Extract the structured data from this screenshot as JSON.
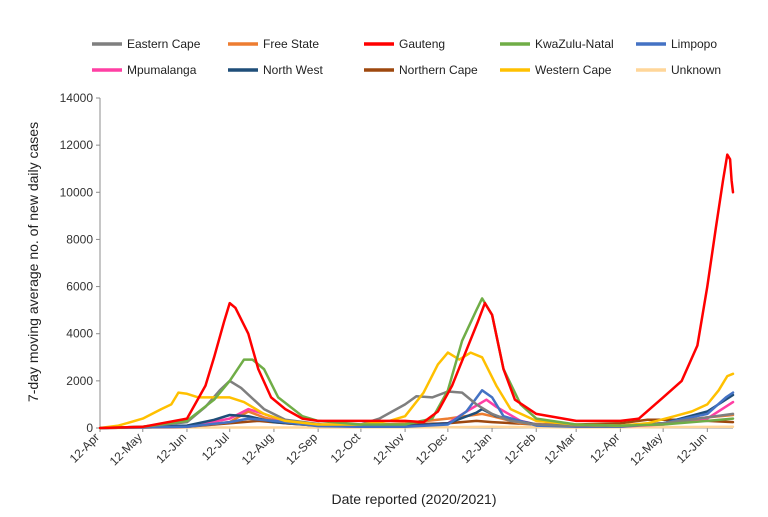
{
  "chart_data": {
    "type": "line",
    "xlabel": "Date reported (2020/2021)",
    "ylabel": "7-day moving average no. of new daily cases",
    "ylim": [
      0,
      14000
    ],
    "yticks": [
      0,
      2000,
      4000,
      6000,
      8000,
      10000,
      12000,
      14000
    ],
    "xlim": [
      "2020-04-12",
      "2021-06-30"
    ],
    "xtick_dates": [
      "2020-04-12",
      "2020-05-12",
      "2020-06-12",
      "2020-07-12",
      "2020-08-12",
      "2020-09-12",
      "2020-10-12",
      "2020-11-12",
      "2020-12-12",
      "2021-01-12",
      "2021-02-12",
      "2021-03-12",
      "2021-04-12",
      "2021-05-12",
      "2021-06-12"
    ],
    "xtick_labels": [
      "12-Apr",
      "12-May",
      "12-Jun",
      "12-Jul",
      "12-Aug",
      "12-Sep",
      "12-Oct",
      "12-Nov",
      "12-Dec",
      "12-Jan",
      "12-Feb",
      "12-Mar",
      "12-Apr",
      "12-May",
      "12-Jun"
    ],
    "legend_position": "top",
    "grid": false,
    "series": [
      {
        "name": "Eastern Cape",
        "color": "#7f7f7f",
        "points": [
          [
            "2020-04-12",
            0
          ],
          [
            "2020-05-12",
            50
          ],
          [
            "2020-06-12",
            250
          ],
          [
            "2020-06-25",
            900
          ],
          [
            "2020-07-05",
            1600
          ],
          [
            "2020-07-12",
            2000
          ],
          [
            "2020-07-20",
            1700
          ],
          [
            "2020-08-05",
            800
          ],
          [
            "2020-08-20",
            350
          ],
          [
            "2020-09-15",
            150
          ],
          [
            "2020-10-12",
            150
          ],
          [
            "2020-10-25",
            400
          ],
          [
            "2020-11-12",
            1000
          ],
          [
            "2020-11-20",
            1350
          ],
          [
            "2020-12-01",
            1300
          ],
          [
            "2020-12-12",
            1550
          ],
          [
            "2020-12-22",
            1500
          ],
          [
            "2021-01-01",
            1000
          ],
          [
            "2021-01-12",
            600
          ],
          [
            "2021-01-25",
            300
          ],
          [
            "2021-02-12",
            150
          ],
          [
            "2021-03-12",
            80
          ],
          [
            "2021-04-12",
            80
          ],
          [
            "2021-05-12",
            200
          ],
          [
            "2021-06-12",
            450
          ],
          [
            "2021-06-30",
            600
          ]
        ]
      },
      {
        "name": "Free State",
        "color": "#ed7d31",
        "points": [
          [
            "2020-04-12",
            0
          ],
          [
            "2020-06-12",
            50
          ],
          [
            "2020-07-12",
            250
          ],
          [
            "2020-07-25",
            700
          ],
          [
            "2020-08-05",
            450
          ],
          [
            "2020-08-20",
            200
          ],
          [
            "2020-09-12",
            100
          ],
          [
            "2020-10-12",
            100
          ],
          [
            "2020-11-12",
            200
          ],
          [
            "2020-12-12",
            400
          ],
          [
            "2021-01-05",
            600
          ],
          [
            "2021-01-12",
            500
          ],
          [
            "2021-02-01",
            200
          ],
          [
            "2021-03-12",
            100
          ],
          [
            "2021-04-12",
            100
          ],
          [
            "2021-05-12",
            200
          ],
          [
            "2021-06-12",
            450
          ],
          [
            "2021-06-30",
            550
          ]
        ]
      },
      {
        "name": "Gauteng",
        "color": "#ff0000",
        "points": [
          [
            "2020-04-12",
            0
          ],
          [
            "2020-05-12",
            50
          ],
          [
            "2020-06-12",
            400
          ],
          [
            "2020-06-25",
            1800
          ],
          [
            "2020-07-01",
            3000
          ],
          [
            "2020-07-08",
            4500
          ],
          [
            "2020-07-12",
            5300
          ],
          [
            "2020-07-16",
            5100
          ],
          [
            "2020-07-25",
            4000
          ],
          [
            "2020-08-01",
            2500
          ],
          [
            "2020-08-10",
            1300
          ],
          [
            "2020-08-20",
            800
          ],
          [
            "2020-09-01",
            400
          ],
          [
            "2020-09-12",
            300
          ],
          [
            "2020-10-12",
            300
          ],
          [
            "2020-11-12",
            300
          ],
          [
            "2020-11-25",
            250
          ],
          [
            "2020-12-05",
            700
          ],
          [
            "2020-12-15",
            1800
          ],
          [
            "2020-12-25",
            3300
          ],
          [
            "2021-01-02",
            4500
          ],
          [
            "2021-01-07",
            5300
          ],
          [
            "2021-01-12",
            4800
          ],
          [
            "2021-01-20",
            2500
          ],
          [
            "2021-01-28",
            1200
          ],
          [
            "2021-02-12",
            600
          ],
          [
            "2021-03-12",
            300
          ],
          [
            "2021-04-12",
            300
          ],
          [
            "2021-04-25",
            400
          ],
          [
            "2021-05-12",
            1300
          ],
          [
            "2021-05-25",
            2000
          ],
          [
            "2021-06-05",
            3500
          ],
          [
            "2021-06-12",
            6000
          ],
          [
            "2021-06-18",
            8500
          ],
          [
            "2021-06-23",
            10500
          ],
          [
            "2021-06-26",
            11600
          ],
          [
            "2021-06-28",
            11400
          ],
          [
            "2021-06-29",
            10500
          ],
          [
            "2021-06-30",
            10000
          ]
        ]
      },
      {
        "name": "KwaZulu-Natal",
        "color": "#70ad47",
        "points": [
          [
            "2020-04-12",
            0
          ],
          [
            "2020-05-12",
            50
          ],
          [
            "2020-06-12",
            300
          ],
          [
            "2020-07-01",
            1200
          ],
          [
            "2020-07-12",
            2000
          ],
          [
            "2020-07-22",
            2900
          ],
          [
            "2020-07-28",
            2900
          ],
          [
            "2020-08-05",
            2500
          ],
          [
            "2020-08-15",
            1300
          ],
          [
            "2020-09-01",
            500
          ],
          [
            "2020-09-12",
            300
          ],
          [
            "2020-10-12",
            150
          ],
          [
            "2020-11-12",
            150
          ],
          [
            "2020-12-01",
            400
          ],
          [
            "2020-12-12",
            1600
          ],
          [
            "2020-12-22",
            3700
          ],
          [
            "2021-01-01",
            5000
          ],
          [
            "2021-01-05",
            5500
          ],
          [
            "2021-01-12",
            4800
          ],
          [
            "2021-01-20",
            2500
          ],
          [
            "2021-02-01",
            1000
          ],
          [
            "2021-02-12",
            400
          ],
          [
            "2021-03-12",
            150
          ],
          [
            "2021-04-12",
            100
          ],
          [
            "2021-05-12",
            150
          ],
          [
            "2021-06-12",
            300
          ],
          [
            "2021-06-30",
            400
          ]
        ]
      },
      {
        "name": "Limpopo",
        "color": "#4472c4",
        "points": [
          [
            "2020-04-12",
            0
          ],
          [
            "2020-06-12",
            50
          ],
          [
            "2020-07-12",
            250
          ],
          [
            "2020-07-25",
            400
          ],
          [
            "2020-08-12",
            300
          ],
          [
            "2020-09-12",
            80
          ],
          [
            "2020-10-12",
            50
          ],
          [
            "2020-11-12",
            50
          ],
          [
            "2020-12-12",
            150
          ],
          [
            "2020-12-25",
            700
          ],
          [
            "2021-01-05",
            1600
          ],
          [
            "2021-01-12",
            1300
          ],
          [
            "2021-01-20",
            500
          ],
          [
            "2021-02-12",
            100
          ],
          [
            "2021-03-12",
            50
          ],
          [
            "2021-04-12",
            50
          ],
          [
            "2021-05-12",
            200
          ],
          [
            "2021-06-12",
            600
          ],
          [
            "2021-06-25",
            1300
          ],
          [
            "2021-06-30",
            1500
          ]
        ]
      },
      {
        "name": "Mpumalanga",
        "color": "#ff3fa4",
        "points": [
          [
            "2020-04-12",
            0
          ],
          [
            "2020-06-12",
            50
          ],
          [
            "2020-07-12",
            400
          ],
          [
            "2020-07-25",
            800
          ],
          [
            "2020-08-05",
            600
          ],
          [
            "2020-08-20",
            250
          ],
          [
            "2020-09-12",
            100
          ],
          [
            "2020-10-12",
            50
          ],
          [
            "2020-11-12",
            80
          ],
          [
            "2020-12-12",
            200
          ],
          [
            "2020-12-25",
            700
          ],
          [
            "2021-01-08",
            1200
          ],
          [
            "2021-01-15",
            900
          ],
          [
            "2021-02-01",
            300
          ],
          [
            "2021-02-12",
            150
          ],
          [
            "2021-03-12",
            80
          ],
          [
            "2021-04-12",
            60
          ],
          [
            "2021-05-12",
            150
          ],
          [
            "2021-06-12",
            400
          ],
          [
            "2021-06-30",
            1100
          ]
        ]
      },
      {
        "name": "North West",
        "color": "#1f4e79",
        "points": [
          [
            "2020-04-12",
            0
          ],
          [
            "2020-06-12",
            100
          ],
          [
            "2020-07-01",
            350
          ],
          [
            "2020-07-12",
            550
          ],
          [
            "2020-07-25",
            500
          ],
          [
            "2020-08-12",
            250
          ],
          [
            "2020-09-12",
            100
          ],
          [
            "2020-10-12",
            80
          ],
          [
            "2020-11-12",
            80
          ],
          [
            "2020-12-12",
            200
          ],
          [
            "2021-01-01",
            650
          ],
          [
            "2021-01-05",
            800
          ],
          [
            "2021-01-15",
            500
          ],
          [
            "2021-02-12",
            150
          ],
          [
            "2021-03-12",
            80
          ],
          [
            "2021-04-12",
            80
          ],
          [
            "2021-05-12",
            200
          ],
          [
            "2021-06-12",
            700
          ],
          [
            "2021-06-30",
            1400
          ]
        ]
      },
      {
        "name": "Northern Cape",
        "color": "#9e480e",
        "points": [
          [
            "2020-04-12",
            0
          ],
          [
            "2020-06-12",
            50
          ],
          [
            "2020-07-12",
            200
          ],
          [
            "2020-08-01",
            300
          ],
          [
            "2020-08-20",
            200
          ],
          [
            "2020-09-12",
            100
          ],
          [
            "2020-10-12",
            100
          ],
          [
            "2020-11-12",
            150
          ],
          [
            "2020-12-12",
            200
          ],
          [
            "2021-01-01",
            300
          ],
          [
            "2021-01-12",
            250
          ],
          [
            "2021-02-12",
            150
          ],
          [
            "2021-03-12",
            150
          ],
          [
            "2021-04-12",
            200
          ],
          [
            "2021-05-01",
            350
          ],
          [
            "2021-05-20",
            350
          ],
          [
            "2021-06-12",
            300
          ],
          [
            "2021-06-30",
            250
          ]
        ]
      },
      {
        "name": "Western Cape",
        "color": "#ffc000",
        "points": [
          [
            "2020-04-12",
            0
          ],
          [
            "2020-04-25",
            100
          ],
          [
            "2020-05-12",
            400
          ],
          [
            "2020-05-25",
            800
          ],
          [
            "2020-06-01",
            1000
          ],
          [
            "2020-06-06",
            1500
          ],
          [
            "2020-06-12",
            1450
          ],
          [
            "2020-06-20",
            1300
          ],
          [
            "2020-07-01",
            1300
          ],
          [
            "2020-07-12",
            1300
          ],
          [
            "2020-07-22",
            1100
          ],
          [
            "2020-08-05",
            600
          ],
          [
            "2020-08-20",
            300
          ],
          [
            "2020-09-12",
            150
          ],
          [
            "2020-10-12",
            150
          ],
          [
            "2020-11-01",
            300
          ],
          [
            "2020-11-12",
            500
          ],
          [
            "2020-11-25",
            1500
          ],
          [
            "2020-12-05",
            2700
          ],
          [
            "2020-12-12",
            3200
          ],
          [
            "2020-12-20",
            2900
          ],
          [
            "2020-12-28",
            3200
          ],
          [
            "2021-01-05",
            3000
          ],
          [
            "2021-01-15",
            1800
          ],
          [
            "2021-01-25",
            800
          ],
          [
            "2021-02-12",
            300
          ],
          [
            "2021-03-12",
            150
          ],
          [
            "2021-04-12",
            100
          ],
          [
            "2021-05-01",
            200
          ],
          [
            "2021-05-20",
            500
          ],
          [
            "2021-06-01",
            700
          ],
          [
            "2021-06-12",
            1000
          ],
          [
            "2021-06-20",
            1600
          ],
          [
            "2021-06-26",
            2200
          ],
          [
            "2021-06-30",
            2300
          ]
        ]
      },
      {
        "name": "Unknown",
        "color": "#ffd699",
        "points": [
          [
            "2020-04-12",
            0
          ],
          [
            "2020-06-12",
            20
          ],
          [
            "2020-09-12",
            20
          ],
          [
            "2020-12-12",
            30
          ],
          [
            "2021-01-12",
            50
          ],
          [
            "2021-03-12",
            20
          ],
          [
            "2021-06-30",
            50
          ]
        ]
      }
    ]
  }
}
